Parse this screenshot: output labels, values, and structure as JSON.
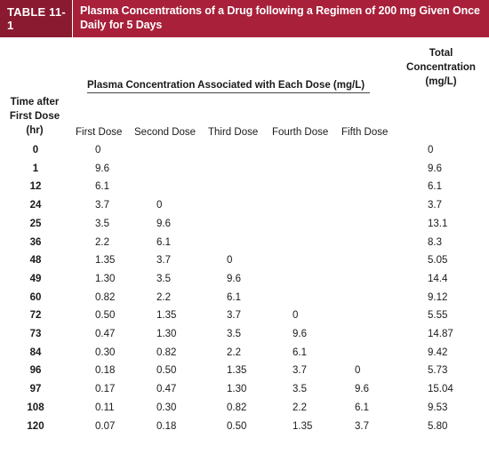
{
  "table": {
    "label": "TABLE 11-1",
    "title_line1": "Plasma Concentrations of a Drug following a Regimen of 200 mg Given Once",
    "title_line2": "Daily for 5 Days",
    "time_header": [
      "Time after",
      "First Dose",
      "(hr)"
    ],
    "total_header": [
      "Total",
      "Concentration",
      "(mg/L)"
    ],
    "span_header": "Plasma Concentration Associated with Each Dose (mg/L)",
    "columns": [
      "First Dose",
      "Second Dose",
      "Third Dose",
      "Fourth Dose",
      "Fifth Dose"
    ],
    "rows": [
      [
        "0",
        "0",
        "",
        "",
        "",
        "",
        "0"
      ],
      [
        "1",
        "9.6",
        "",
        "",
        "",
        "",
        "9.6"
      ],
      [
        "12",
        "6.1",
        "",
        "",
        "",
        "",
        "6.1"
      ],
      [
        "24",
        "3.7",
        "0",
        "",
        "",
        "",
        "3.7"
      ],
      [
        "25",
        "3.5",
        "9.6",
        "",
        "",
        "",
        "13.1"
      ],
      [
        "36",
        "2.2",
        "6.1",
        "",
        "",
        "",
        "8.3"
      ],
      [
        "48",
        "1.35",
        "3.7",
        "0",
        "",
        "",
        "5.05"
      ],
      [
        "49",
        "1.30",
        "3.5",
        "9.6",
        "",
        "",
        "14.4"
      ],
      [
        "60",
        "0.82",
        "2.2",
        "6.1",
        "",
        "",
        "9.12"
      ],
      [
        "72",
        "0.50",
        "1.35",
        "3.7",
        "0",
        "",
        "5.55"
      ],
      [
        "73",
        "0.47",
        "1.30",
        "3.5",
        "9.6",
        "",
        "14.87"
      ],
      [
        "84",
        "0.30",
        "0.82",
        "2.2",
        "6.1",
        "",
        "9.42"
      ],
      [
        "96",
        "0.18",
        "0.50",
        "1.35",
        "3.7",
        "0",
        "5.73"
      ],
      [
        "97",
        "0.17",
        "0.47",
        "1.30",
        "3.5",
        "9.6",
        "15.04"
      ],
      [
        "108",
        "0.11",
        "0.30",
        "0.82",
        "2.2",
        "6.1",
        "9.53"
      ],
      [
        "120",
        "0.07",
        "0.18",
        "0.50",
        "1.35",
        "3.7",
        "5.80"
      ]
    ]
  }
}
